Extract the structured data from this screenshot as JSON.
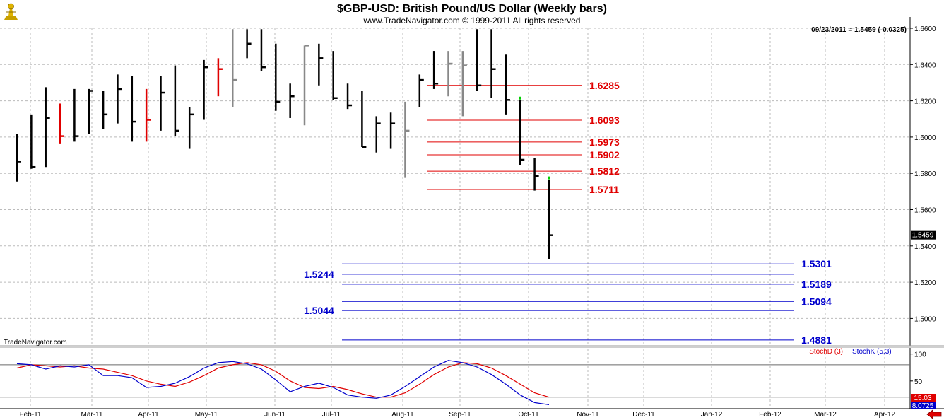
{
  "chart_data": {
    "type": "bar",
    "title": "$GBP-USD:  British Pound/US Dollar  (Weekly bars)",
    "subtitle": "www.TradeNavigator.com © 1999-2011 All rights reserved",
    "readout": "09/23/2011 = 1.5459 (-0.0325)",
    "last_price_label": "1.5459",
    "watermark": "TradeNavigator.com",
    "ylim": [
      1.484,
      1.664
    ],
    "y_ticks": [
      "1.6600",
      "1.6400",
      "1.6200",
      "1.6000",
      "1.5800",
      "1.5600",
      "1.5400",
      "1.5200",
      "1.5000"
    ],
    "y_tick_values": [
      1.66,
      1.64,
      1.62,
      1.6,
      1.58,
      1.56,
      1.54,
      1.52,
      1.5
    ],
    "x_ticks": [
      "Feb-11",
      "Mar-11",
      "Apr-11",
      "May-11",
      "Jun-11",
      "Jul-11",
      "Aug-11",
      "Sep-11",
      "Oct-11",
      "Nov-11",
      "Dec-11",
      "Jan-12",
      "Feb-12",
      "Mar-12",
      "Apr-12"
    ],
    "colors": {
      "up": "#000000",
      "red": "#e00000",
      "gray": "#888888",
      "green": "#00cc00",
      "level_red": "#e00000",
      "level_blue": "#0000cc",
      "stochD": "#e00000",
      "stochK": "#0000cc"
    },
    "bars": [
      {
        "w": 0,
        "h": 1.6015,
        "l": 1.5755,
        "c": 1.5865,
        "col": "up"
      },
      {
        "w": 1,
        "h": 1.6125,
        "l": 1.5825,
        "c": 1.5835,
        "col": "up"
      },
      {
        "w": 2,
        "h": 1.6275,
        "l": 1.5835,
        "c": 1.6105,
        "col": "up"
      },
      {
        "w": 3,
        "h": 1.6185,
        "l": 1.5965,
        "c": 1.6005,
        "col": "red"
      },
      {
        "w": 4,
        "h": 1.6265,
        "l": 1.5975,
        "c": 1.6005,
        "col": "up"
      },
      {
        "w": 5,
        "h": 1.6265,
        "l": 1.6015,
        "c": 1.6255,
        "col": "up"
      },
      {
        "w": 6,
        "h": 1.6255,
        "l": 1.6045,
        "c": 1.6125,
        "col": "up"
      },
      {
        "w": 7,
        "h": 1.6345,
        "l": 1.6075,
        "c": 1.6265,
        "col": "up"
      },
      {
        "w": 8,
        "h": 1.6335,
        "l": 1.5975,
        "c": 1.6085,
        "col": "up"
      },
      {
        "w": 9,
        "h": 1.6265,
        "l": 1.5975,
        "c": 1.6095,
        "col": "red"
      },
      {
        "w": 10,
        "h": 1.6335,
        "l": 1.6035,
        "c": 1.6245,
        "col": "up"
      },
      {
        "w": 11,
        "h": 1.6395,
        "l": 1.6005,
        "c": 1.6035,
        "col": "up"
      },
      {
        "w": 12,
        "h": 1.6165,
        "l": 1.5935,
        "c": 1.6125,
        "col": "up"
      },
      {
        "w": 13,
        "h": 1.6425,
        "l": 1.6095,
        "c": 1.6385,
        "col": "up"
      },
      {
        "w": 14,
        "h": 1.6435,
        "l": 1.6225,
        "c": 1.6375,
        "col": "red"
      },
      {
        "w": 15,
        "h": 1.6595,
        "l": 1.6165,
        "c": 1.6315,
        "col": "gray"
      },
      {
        "w": 16,
        "h": 1.6595,
        "l": 1.6435,
        "c": 1.6515,
        "col": "up"
      },
      {
        "w": 17,
        "h": 1.6595,
        "l": 1.6365,
        "c": 1.6385,
        "col": "up"
      },
      {
        "w": 18,
        "h": 1.6515,
        "l": 1.6145,
        "c": 1.6195,
        "col": "up"
      },
      {
        "w": 19,
        "h": 1.6295,
        "l": 1.6105,
        "c": 1.6225,
        "col": "up"
      },
      {
        "w": 20,
        "h": 1.6505,
        "l": 1.6065,
        "c": 1.6505,
        "col": "gray"
      },
      {
        "w": 21,
        "h": 1.6515,
        "l": 1.6285,
        "c": 1.6435,
        "col": "up"
      },
      {
        "w": 22,
        "h": 1.6475,
        "l": 1.6205,
        "c": 1.6215,
        "col": "up"
      },
      {
        "w": 23,
        "h": 1.6295,
        "l": 1.6155,
        "c": 1.6175,
        "col": "up"
      },
      {
        "w": 24,
        "h": 1.6255,
        "l": 1.5945,
        "c": 1.5945,
        "col": "up"
      },
      {
        "w": 25,
        "h": 1.6115,
        "l": 1.5915,
        "c": 1.6075,
        "col": "up"
      },
      {
        "w": 26,
        "h": 1.6135,
        "l": 1.5935,
        "c": 1.6075,
        "col": "up"
      },
      {
        "w": 27,
        "h": 1.6195,
        "l": 1.5775,
        "c": 1.6035,
        "col": "gray"
      },
      {
        "w": 28,
        "h": 1.6345,
        "l": 1.6165,
        "c": 1.6315,
        "col": "up"
      },
      {
        "w": 29,
        "h": 1.6475,
        "l": 1.6265,
        "c": 1.6295,
        "col": "up"
      },
      {
        "w": 30,
        "h": 1.6475,
        "l": 1.6225,
        "c": 1.6405,
        "col": "gray"
      },
      {
        "w": 31,
        "h": 1.6475,
        "l": 1.6115,
        "c": 1.6395,
        "col": "gray"
      },
      {
        "w": 32,
        "h": 1.6595,
        "l": 1.6255,
        "c": 1.6285,
        "col": "up"
      },
      {
        "w": 33,
        "h": 1.6595,
        "l": 1.6215,
        "c": 1.6375,
        "col": "up"
      },
      {
        "w": 34,
        "h": 1.6455,
        "l": 1.6125,
        "c": 1.6205,
        "col": "up"
      },
      {
        "w": 35,
        "h": 1.6205,
        "l": 1.5845,
        "c": 1.5875,
        "col": "up"
      },
      {
        "w": 36,
        "h": 1.5885,
        "l": 1.5705,
        "c": 1.5785,
        "col": "up"
      },
      {
        "w": 37,
        "h": 1.5765,
        "l": 1.5325,
        "c": 1.5459,
        "col": "up"
      }
    ],
    "green_marks": [
      {
        "w": 35,
        "v": 1.6215
      },
      {
        "w": 37,
        "v": 1.5775
      }
    ],
    "levels_red": [
      {
        "label": "1.6285",
        "v": 1.6285
      },
      {
        "label": "1.6093",
        "v": 1.6093
      },
      {
        "label": "1.5973",
        "v": 1.5973
      },
      {
        "label": "1.5902",
        "v": 1.5902
      },
      {
        "label": "1.5812",
        "v": 1.5812
      },
      {
        "label": "1.5711",
        "v": 1.5711
      }
    ],
    "levels_blue": [
      {
        "label": "1.5301",
        "v": 1.5301,
        "side": "right"
      },
      {
        "label": "1.5244",
        "v": 1.5244,
        "side": "left"
      },
      {
        "label": "1.5189",
        "v": 1.5189,
        "side": "right"
      },
      {
        "label": "1.5094",
        "v": 1.5094,
        "side": "right"
      },
      {
        "label": "1.5044",
        "v": 1.5044,
        "side": "left"
      },
      {
        "label": "1.4881",
        "v": 1.4881,
        "side": "right"
      }
    ],
    "stoch": {
      "legend_d": "StochD (3)",
      "legend_k": "StochK (5,3)",
      "y_ticks": [
        "100",
        "50"
      ],
      "y_tick_values": [
        100,
        50
      ],
      "ylim": [
        0,
        110
      ],
      "reference_lines": [
        80,
        20
      ],
      "last_value_label": "15.03",
      "last_value_label2": "8.0725",
      "k": [
        82,
        80,
        72,
        78,
        76,
        80,
        60,
        60,
        56,
        38,
        40,
        46,
        58,
        74,
        84,
        86,
        82,
        72,
        52,
        30,
        40,
        46,
        38,
        24,
        20,
        18,
        24,
        40,
        58,
        76,
        88,
        84,
        76,
        62,
        44,
        24,
        10,
        6
      ],
      "d": [
        74,
        80,
        78,
        76,
        78,
        74,
        72,
        66,
        60,
        50,
        44,
        40,
        48,
        60,
        74,
        80,
        84,
        80,
        68,
        50,
        38,
        36,
        40,
        34,
        26,
        20,
        20,
        28,
        44,
        62,
        76,
        84,
        82,
        74,
        60,
        44,
        28,
        20
      ]
    }
  }
}
